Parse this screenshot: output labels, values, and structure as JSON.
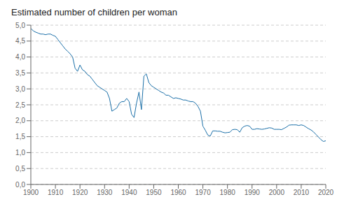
{
  "chart_data": {
    "type": "line",
    "title": "Estimated number of children per woman",
    "color": "#1a6fa8",
    "grid": true,
    "xlim": [
      1900,
      2020
    ],
    "ylim": [
      0.0,
      5.0
    ],
    "xticks": [
      1900,
      1910,
      1920,
      1930,
      1940,
      1950,
      1960,
      1970,
      1980,
      1990,
      2000,
      2010,
      2020
    ],
    "yticks": [
      {
        "value": 0.0,
        "label": "0,0"
      },
      {
        "value": 0.5,
        "label": "0,5"
      },
      {
        "value": 1.0,
        "label": "1,0"
      },
      {
        "value": 1.5,
        "label": "1,5"
      },
      {
        "value": 2.0,
        "label": "2,0"
      },
      {
        "value": 2.5,
        "label": "2,5"
      },
      {
        "value": 3.0,
        "label": "3,0"
      },
      {
        "value": 3.5,
        "label": "3,5"
      },
      {
        "value": 4.0,
        "label": "4,0"
      },
      {
        "value": 4.5,
        "label": "4,5"
      },
      {
        "value": 5.0,
        "label": "5,0"
      }
    ],
    "x": [
      1900,
      1901,
      1902,
      1903,
      1904,
      1905,
      1906,
      1907,
      1908,
      1909,
      1910,
      1911,
      1912,
      1913,
      1914,
      1915,
      1916,
      1917,
      1918,
      1919,
      1920,
      1921,
      1922,
      1923,
      1924,
      1925,
      1926,
      1927,
      1928,
      1929,
      1930,
      1931,
      1932,
      1933,
      1934,
      1935,
      1936,
      1937,
      1938,
      1939,
      1940,
      1941,
      1942,
      1943,
      1944,
      1945,
      1946,
      1947,
      1948,
      1949,
      1950,
      1951,
      1952,
      1953,
      1954,
      1955,
      1956,
      1957,
      1958,
      1959,
      1960,
      1961,
      1962,
      1963,
      1964,
      1965,
      1966,
      1967,
      1968,
      1969,
      1970,
      1971,
      1972,
      1973,
      1974,
      1975,
      1976,
      1977,
      1978,
      1979,
      1980,
      1981,
      1982,
      1983,
      1984,
      1985,
      1986,
      1987,
      1988,
      1989,
      1990,
      1991,
      1992,
      1993,
      1994,
      1995,
      1996,
      1997,
      1998,
      1999,
      2000,
      2001,
      2002,
      2003,
      2004,
      2005,
      2006,
      2007,
      2008,
      2009,
      2010,
      2011,
      2012,
      2013,
      2014,
      2015,
      2016,
      2017,
      2018,
      2019,
      2020
    ],
    "values": [
      4.9,
      4.82,
      4.78,
      4.75,
      4.72,
      4.72,
      4.7,
      4.72,
      4.72,
      4.68,
      4.65,
      4.55,
      4.45,
      4.35,
      4.25,
      4.18,
      4.1,
      4.0,
      3.65,
      3.55,
      3.75,
      3.6,
      3.55,
      3.45,
      3.4,
      3.3,
      3.2,
      3.1,
      3.05,
      3.0,
      2.95,
      2.9,
      2.7,
      2.3,
      2.35,
      2.4,
      2.55,
      2.6,
      2.6,
      2.7,
      2.6,
      2.2,
      2.1,
      2.55,
      2.9,
      2.35,
      3.4,
      3.47,
      3.2,
      3.1,
      3.05,
      3.0,
      2.95,
      2.9,
      2.87,
      2.8,
      2.8,
      2.75,
      2.7,
      2.72,
      2.7,
      2.68,
      2.65,
      2.65,
      2.62,
      2.6,
      2.6,
      2.55,
      2.45,
      2.3,
      1.83,
      1.7,
      1.55,
      1.52,
      1.68,
      1.68,
      1.67,
      1.67,
      1.64,
      1.62,
      1.63,
      1.64,
      1.72,
      1.73,
      1.72,
      1.64,
      1.78,
      1.83,
      1.85,
      1.83,
      1.73,
      1.73,
      1.75,
      1.74,
      1.73,
      1.74,
      1.76,
      1.78,
      1.77,
      1.73,
      1.73,
      1.73,
      1.72,
      1.76,
      1.8,
      1.86,
      1.87,
      1.87,
      1.87,
      1.85,
      1.87,
      1.85,
      1.8,
      1.75,
      1.71,
      1.65,
      1.57,
      1.49,
      1.41,
      1.35,
      1.37
    ]
  }
}
